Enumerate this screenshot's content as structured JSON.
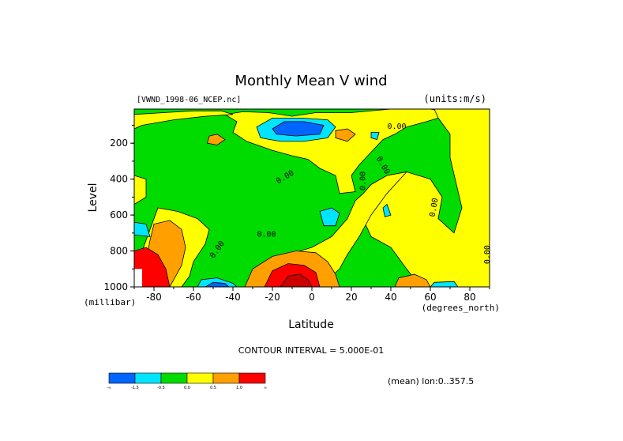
{
  "chart_data": {
    "type": "heatmap",
    "title": "Monthly Mean V wind",
    "dataset_label": "[VWND_1998-06_NCEP.nc]",
    "units_label": "(units:m/s)",
    "xlabel": "Latitude",
    "x_units": "(degrees_north)",
    "ylabel": "Level",
    "y_units": "(millibar)",
    "xlim": [
      -90,
      90
    ],
    "ylim": [
      1000,
      10
    ],
    "x_ticks": [
      -80,
      -60,
      -40,
      -20,
      0,
      20,
      40,
      60,
      80
    ],
    "y_ticks": [
      200,
      400,
      600,
      800,
      1000
    ],
    "contour_interval_text": "CONTOUR INTERVAL = 5.000E-01",
    "mean_note": "(mean) lon:0..357.5",
    "contour_labels": [
      {
        "text": "0.00",
        "x": 43,
        "y": 120,
        "rotate": 0
      },
      {
        "text": "0.00",
        "x": -13,
        "y": 400,
        "rotate": -30
      },
      {
        "text": "0.00",
        "x": 27,
        "y": 410,
        "rotate": -90
      },
      {
        "text": "0.00",
        "x": 35,
        "y": 330,
        "rotate": 60
      },
      {
        "text": "0.00",
        "x": 63,
        "y": 560,
        "rotate": -80
      },
      {
        "text": "0.00",
        "x": -23,
        "y": 720,
        "rotate": 0
      },
      {
        "text": "0.00",
        "x": -47,
        "y": 800,
        "rotate": -55
      },
      {
        "text": "0.00",
        "x": 90,
        "y": 820,
        "rotate": -90
      }
    ],
    "colorbar": {
      "colors": [
        "#0064ff",
        "#00e4ff",
        "#00dc00",
        "#ffff00",
        "#ffa000",
        "#ff0000"
      ],
      "tick_labels": [
        "-∞",
        "-1.5",
        "-0.5",
        "0.0",
        "0.5",
        "1.0",
        "∞"
      ]
    },
    "levels": {
      "neg_strong": "#0064ff",
      "neg_weak": "#00e4ff",
      "near_zero": "#00dc00",
      "pos_weak": "#ffff00",
      "pos_mid": "#ffa000",
      "pos_strong": "#ff0000",
      "pos_max": "#cc0000"
    }
  }
}
